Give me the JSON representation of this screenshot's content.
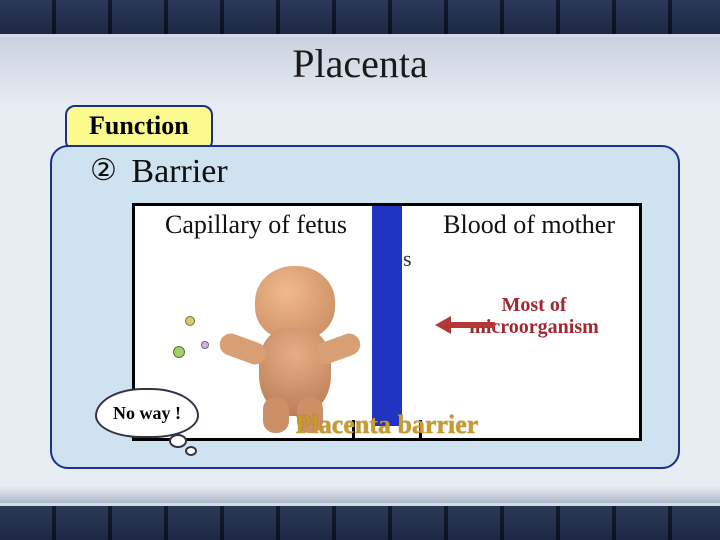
{
  "title": "Placenta",
  "function_tab": "Function",
  "barrier": {
    "circled_number": "②",
    "heading": " Barrier",
    "left_label": "Capillary of fetus",
    "right_label": "Blood of mother",
    "stray_letter": "s",
    "micro_line1": "Most of",
    "micro_line2": "microorganism",
    "bubble_text": "No way !",
    "barrier_label": "Placenta barrier"
  },
  "colors": {
    "tab_bg": "#fbfa8f",
    "tab_border": "#1b2f8c",
    "panel_bg": "#cfe2ef",
    "panel_border": "#1b2f8c",
    "bar": "#2034c2",
    "micro_text": "#a0282e",
    "arrow": "#b23838",
    "barrier_text": "#c89b2a",
    "diagram_border": "#000000",
    "diagram_bg": "#ffffff"
  }
}
